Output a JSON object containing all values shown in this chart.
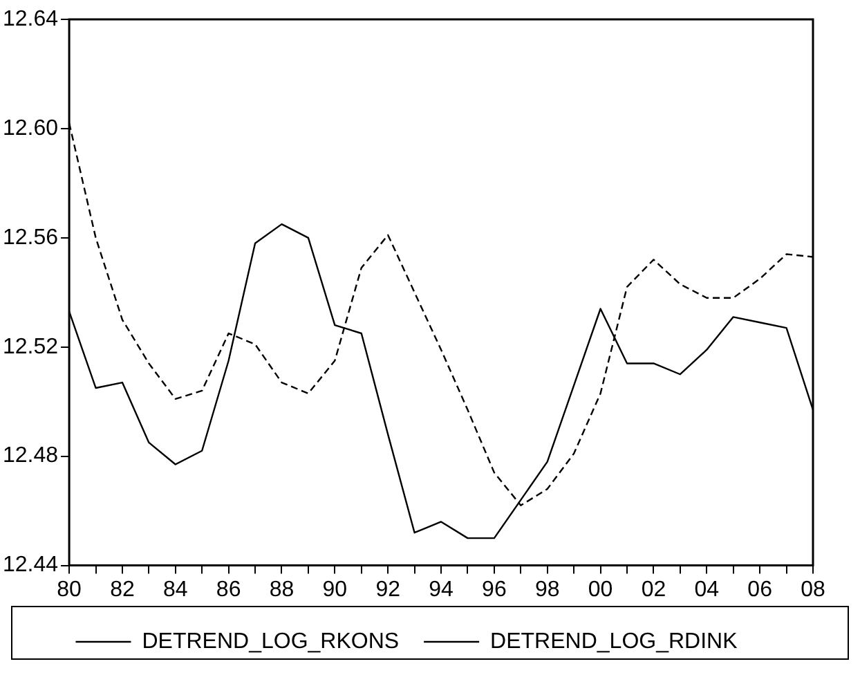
{
  "chart_data": {
    "type": "line",
    "categories": [
      "80",
      null,
      "82",
      null,
      "84",
      null,
      "86",
      null,
      "88",
      null,
      "90",
      null,
      "92",
      null,
      "94",
      null,
      "96",
      null,
      "98",
      null,
      "00",
      null,
      "02",
      null,
      "04",
      null,
      "06",
      null,
      "08"
    ],
    "series": [
      {
        "name": "DETREND_LOG_RKONS",
        "color": "#000000",
        "line_style": "solid",
        "values": [
          12.533,
          12.505,
          12.507,
          12.485,
          12.477,
          12.482,
          12.515,
          12.558,
          12.565,
          12.56,
          12.528,
          12.525,
          12.488,
          12.452,
          12.456,
          12.45,
          12.45,
          12.464,
          12.478,
          12.506,
          12.534,
          12.514,
          12.514,
          12.51,
          12.519,
          12.531,
          12.529,
          12.527,
          12.497
        ]
      },
      {
        "name": "DETREND_LOG_RDINK",
        "color": "#000000",
        "line_style": "dashed",
        "values": [
          12.602,
          12.56,
          12.53,
          12.514,
          12.501,
          12.504,
          12.525,
          12.521,
          12.507,
          12.503,
          12.515,
          12.549,
          12.561,
          12.54,
          12.519,
          12.497,
          12.474,
          12.462,
          12.468,
          12.481,
          12.503,
          12.542,
          12.552,
          12.543,
          12.538,
          12.538,
          12.545,
          12.554,
          12.553
        ]
      }
    ],
    "ylim": [
      12.44,
      12.64
    ],
    "yticks": [
      {
        "value": 12.44,
        "label": "12.44"
      },
      {
        "value": 12.48,
        "label": "12.48"
      },
      {
        "value": 12.52,
        "label": "12.52"
      },
      {
        "value": 12.56,
        "label": "12.56"
      },
      {
        "value": 12.6,
        "label": "12.60"
      },
      {
        "value": 12.64,
        "label": "12.64"
      }
    ],
    "grid": false,
    "legend": "bottom",
    "marker": "none"
  }
}
